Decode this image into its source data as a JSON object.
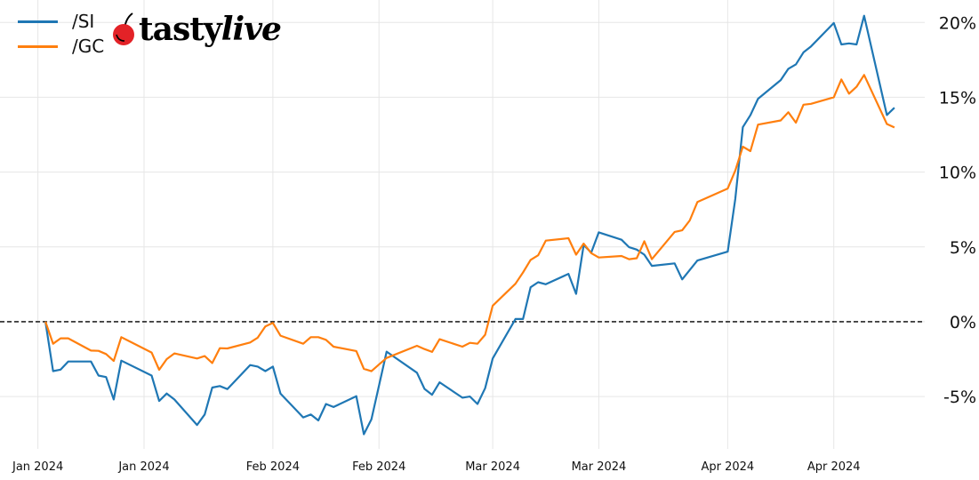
{
  "logo_text": "tastylive",
  "colors": {
    "si": "#1f77b4",
    "gc": "#ff7f0e",
    "grid": "#e6e6e6",
    "zero_line": "#000000"
  },
  "chart_data": {
    "type": "line",
    "title": "",
    "xlabel": "",
    "ylabel": "",
    "x_type": "date",
    "xlim": [
      "2023-12-27",
      "2024-04-27"
    ],
    "ylim": [
      -8.5,
      21.5
    ],
    "y_unit": "%",
    "y_axis_side": "right",
    "grid": true,
    "reference_line": {
      "value": 0,
      "style": "dashed"
    },
    "legend_placement": "top-left",
    "x_ticks": [
      {
        "date": "2024-01-01",
        "label": "Jan 2024"
      },
      {
        "date": "2024-01-15",
        "label": "Jan 2024"
      },
      {
        "date": "2024-02-01",
        "label": "Feb 2024"
      },
      {
        "date": "2024-02-15",
        "label": "Feb 2024"
      },
      {
        "date": "2024-03-01",
        "label": "Mar 2024"
      },
      {
        "date": "2024-03-15",
        "label": "Mar 2024"
      },
      {
        "date": "2024-04-01",
        "label": "Apr 2024"
      },
      {
        "date": "2024-04-15",
        "label": "Apr 2024"
      }
    ],
    "y_ticks": [
      {
        "value": -5,
        "label": "-5%"
      },
      {
        "value": 0,
        "label": "0%"
      },
      {
        "value": 5,
        "label": "5%"
      },
      {
        "value": 10,
        "label": "10%"
      },
      {
        "value": 15,
        "label": "15%"
      },
      {
        "value": 20,
        "label": "20%"
      }
    ],
    "series": [
      {
        "name": "/SI",
        "color": "#1f77b4",
        "points": [
          [
            "2024-01-02",
            0
          ],
          [
            "2024-01-03",
            -3.3
          ],
          [
            "2024-01-04",
            -3.2
          ],
          [
            "2024-01-05",
            -2.66
          ],
          [
            "2024-01-08",
            -2.66
          ],
          [
            "2024-01-09",
            -3.6
          ],
          [
            "2024-01-10",
            -3.7
          ],
          [
            "2024-01-11",
            -5.2
          ],
          [
            "2024-01-12",
            -2.6
          ],
          [
            "2024-01-16",
            -3.6
          ],
          [
            "2024-01-17",
            -5.3
          ],
          [
            "2024-01-18",
            -4.8
          ],
          [
            "2024-01-19",
            -5.2
          ],
          [
            "2024-01-22",
            -6.9
          ],
          [
            "2024-01-23",
            -6.2
          ],
          [
            "2024-01-24",
            -4.4
          ],
          [
            "2024-01-25",
            -4.3
          ],
          [
            "2024-01-26",
            -4.5
          ],
          [
            "2024-01-29",
            -2.9
          ],
          [
            "2024-01-30",
            -3.0
          ],
          [
            "2024-01-31",
            -3.3
          ],
          [
            "2024-02-01",
            -3.0
          ],
          [
            "2024-02-02",
            -4.8
          ],
          [
            "2024-02-05",
            -6.4
          ],
          [
            "2024-02-06",
            -6.2
          ],
          [
            "2024-02-07",
            -6.6
          ],
          [
            "2024-02-08",
            -5.5
          ],
          [
            "2024-02-09",
            -5.7
          ],
          [
            "2024-02-12",
            -4.98
          ],
          [
            "2024-02-13",
            -7.52
          ],
          [
            "2024-02-14",
            -6.53
          ],
          [
            "2024-02-16",
            -2.0
          ],
          [
            "2024-02-20",
            -3.41
          ],
          [
            "2024-02-21",
            -4.49
          ],
          [
            "2024-02-22",
            -4.88
          ],
          [
            "2024-02-23",
            -4.05
          ],
          [
            "2024-02-26",
            -5.08
          ],
          [
            "2024-02-27",
            -5.0
          ],
          [
            "2024-02-28",
            -5.5
          ],
          [
            "2024-02-29",
            -4.44
          ],
          [
            "2024-03-01",
            -2.46
          ],
          [
            "2024-03-04",
            0.18
          ],
          [
            "2024-03-05",
            0.18
          ],
          [
            "2024-03-06",
            2.3
          ],
          [
            "2024-03-07",
            2.64
          ],
          [
            "2024-03-08",
            2.5
          ],
          [
            "2024-03-11",
            3.2
          ],
          [
            "2024-03-12",
            1.86
          ],
          [
            "2024-03-13",
            5.12
          ],
          [
            "2024-03-14",
            4.62
          ],
          [
            "2024-03-15",
            5.97
          ],
          [
            "2024-03-18",
            5.48
          ],
          [
            "2024-03-19",
            4.98
          ],
          [
            "2024-03-20",
            4.82
          ],
          [
            "2024-03-21",
            4.48
          ],
          [
            "2024-03-22",
            3.73
          ],
          [
            "2024-03-25",
            3.9
          ],
          [
            "2024-03-26",
            2.83
          ],
          [
            "2024-03-28",
            4.09
          ],
          [
            "2024-04-01",
            4.68
          ],
          [
            "2024-04-02",
            8.2
          ],
          [
            "2024-04-03",
            13.0
          ],
          [
            "2024-04-04",
            13.8
          ],
          [
            "2024-04-05",
            14.9
          ],
          [
            "2024-04-08",
            16.15
          ],
          [
            "2024-04-09",
            16.9
          ],
          [
            "2024-04-10",
            17.2
          ],
          [
            "2024-04-11",
            18.0
          ],
          [
            "2024-04-12",
            18.4
          ],
          [
            "2024-04-15",
            19.96
          ],
          [
            "2024-04-16",
            18.53
          ],
          [
            "2024-04-17",
            18.6
          ],
          [
            "2024-04-18",
            18.53
          ],
          [
            "2024-04-19",
            20.45
          ],
          [
            "2024-04-22",
            13.81
          ],
          [
            "2024-04-23",
            14.3
          ]
        ]
      },
      {
        "name": "/GC",
        "color": "#ff7f0e",
        "points": [
          [
            "2024-01-02",
            0
          ],
          [
            "2024-01-03",
            -1.47
          ],
          [
            "2024-01-04",
            -1.11
          ],
          [
            "2024-01-05",
            -1.11
          ],
          [
            "2024-01-08",
            -1.93
          ],
          [
            "2024-01-09",
            -1.95
          ],
          [
            "2024-01-10",
            -2.16
          ],
          [
            "2024-01-11",
            -2.62
          ],
          [
            "2024-01-12",
            -1.03
          ],
          [
            "2024-01-16",
            -2.06
          ],
          [
            "2024-01-17",
            -3.21
          ],
          [
            "2024-01-18",
            -2.5
          ],
          [
            "2024-01-19",
            -2.12
          ],
          [
            "2024-01-22",
            -2.46
          ],
          [
            "2024-01-23",
            -2.3
          ],
          [
            "2024-01-24",
            -2.76
          ],
          [
            "2024-01-25",
            -1.77
          ],
          [
            "2024-01-26",
            -1.79
          ],
          [
            "2024-01-29",
            -1.39
          ],
          [
            "2024-01-30",
            -1.07
          ],
          [
            "2024-01-31",
            -0.32
          ],
          [
            "2024-02-01",
            -0.08
          ],
          [
            "2024-02-02",
            -0.93
          ],
          [
            "2024-02-05",
            -1.47
          ],
          [
            "2024-02-06",
            -1.03
          ],
          [
            "2024-02-07",
            -1.03
          ],
          [
            "2024-02-08",
            -1.21
          ],
          [
            "2024-02-09",
            -1.67
          ],
          [
            "2024-02-12",
            -1.96
          ],
          [
            "2024-02-13",
            -3.15
          ],
          [
            "2024-02-14",
            -3.31
          ],
          [
            "2024-02-15",
            -2.86
          ],
          [
            "2024-02-16",
            -2.42
          ],
          [
            "2024-02-20",
            -1.61
          ],
          [
            "2024-02-21",
            -1.83
          ],
          [
            "2024-02-22",
            -2.02
          ],
          [
            "2024-02-23",
            -1.17
          ],
          [
            "2024-02-26",
            -1.67
          ],
          [
            "2024-02-27",
            -1.41
          ],
          [
            "2024-02-28",
            -1.47
          ],
          [
            "2024-02-29",
            -0.87
          ],
          [
            "2024-03-01",
            1.07
          ],
          [
            "2024-03-04",
            2.54
          ],
          [
            "2024-03-05",
            3.29
          ],
          [
            "2024-03-06",
            4.13
          ],
          [
            "2024-03-07",
            4.44
          ],
          [
            "2024-03-08",
            5.42
          ],
          [
            "2024-03-11",
            5.58
          ],
          [
            "2024-03-12",
            4.48
          ],
          [
            "2024-03-13",
            5.22
          ],
          [
            "2024-03-14",
            4.58
          ],
          [
            "2024-03-15",
            4.29
          ],
          [
            "2024-03-18",
            4.39
          ],
          [
            "2024-03-19",
            4.18
          ],
          [
            "2024-03-20",
            4.24
          ],
          [
            "2024-03-21",
            5.38
          ],
          [
            "2024-03-22",
            4.18
          ],
          [
            "2024-03-25",
            6.0
          ],
          [
            "2024-03-26",
            6.11
          ],
          [
            "2024-03-27",
            6.77
          ],
          [
            "2024-03-28",
            8.0
          ],
          [
            "2024-04-01",
            8.9
          ],
          [
            "2024-04-02",
            10.1
          ],
          [
            "2024-04-03",
            11.7
          ],
          [
            "2024-04-04",
            11.4
          ],
          [
            "2024-04-05",
            13.17
          ],
          [
            "2024-04-08",
            13.45
          ],
          [
            "2024-04-09",
            14.0
          ],
          [
            "2024-04-10",
            13.3
          ],
          [
            "2024-04-11",
            14.5
          ],
          [
            "2024-04-12",
            14.56
          ],
          [
            "2024-04-15",
            15.0
          ],
          [
            "2024-04-16",
            16.19
          ],
          [
            "2024-04-17",
            15.24
          ],
          [
            "2024-04-18",
            15.7
          ],
          [
            "2024-04-19",
            16.49
          ],
          [
            "2024-04-22",
            13.21
          ],
          [
            "2024-04-23",
            12.98
          ]
        ]
      }
    ]
  }
}
